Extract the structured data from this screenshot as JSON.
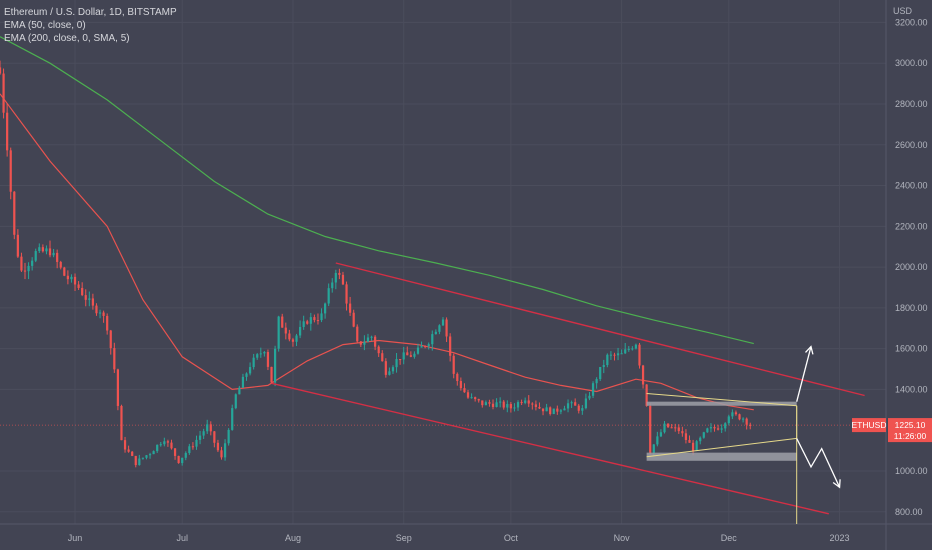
{
  "legend": {
    "title": "Ethereum / U.S. Dollar, 1D, BITSTAMP",
    "indicator_1": "EMA (50, close, 0)",
    "indicator_2": "EMA (200, close, 0, SMA, 5)"
  },
  "price_badge": {
    "symbol": "ETHUSD",
    "price": "1225.10",
    "countdown": "11:26:00"
  },
  "chart_data": {
    "type": "candlestick",
    "symbol": "ETHUSD",
    "currency_label": "USD",
    "ylim": [
      740,
      3310
    ],
    "y_ticks": [
      {
        "value": 3200,
        "label": "3200.00"
      },
      {
        "value": 3000,
        "label": "3000.00"
      },
      {
        "value": 2800,
        "label": "2800.00"
      },
      {
        "value": 2600,
        "label": "2600.00"
      },
      {
        "value": 2400,
        "label": "2400.00"
      },
      {
        "value": 2200,
        "label": "2200.00"
      },
      {
        "value": 2000,
        "label": "2000.00"
      },
      {
        "value": 1800,
        "label": "1800.00"
      },
      {
        "value": 1600,
        "label": "1600.00"
      },
      {
        "value": 1400,
        "label": "1400.00"
      },
      {
        "value": 1000,
        "label": "1000.00"
      },
      {
        "value": 800,
        "label": "800.00"
      }
    ],
    "x_range": [
      "2022-05-11",
      "2023-01-14"
    ],
    "x_ticks": [
      {
        "date": "2022-06-01",
        "label": "Jun"
      },
      {
        "date": "2022-07-01",
        "label": "Jul"
      },
      {
        "date": "2022-08-01",
        "label": "Aug"
      },
      {
        "date": "2022-09-01",
        "label": "Sep"
      },
      {
        "date": "2022-10-01",
        "label": "Oct"
      },
      {
        "date": "2022-11-01",
        "label": "Nov"
      },
      {
        "date": "2022-12-01",
        "label": "Dec"
      },
      {
        "date": "2023-01-01",
        "label": "2023"
      }
    ],
    "last_price": 1225.1,
    "colors": {
      "up": "#26a69a",
      "down": "#ef5350",
      "ema50": "#e8534f",
      "ema200": "#4caf50",
      "channel": "#d32f45",
      "triangle": "#e6d98a",
      "zone": "#9ea0a8",
      "arrow": "#ffffff",
      "badge": "#ef5350"
    },
    "candle_anchors": [
      [
        "2022-05-11",
        2950
      ],
      [
        "2022-05-13",
        2600
      ],
      [
        "2022-05-15",
        2150
      ],
      [
        "2022-05-17",
        1980
      ],
      [
        "2022-05-21",
        2070
      ],
      [
        "2022-05-25",
        2080
      ],
      [
        "2022-05-29",
        1960
      ],
      [
        "2022-06-02",
        1900
      ],
      [
        "2022-06-06",
        1800
      ],
      [
        "2022-06-08",
        1790
      ],
      [
        "2022-06-10",
        1710
      ],
      [
        "2022-06-12",
        1500
      ],
      [
        "2022-06-14",
        1140
      ],
      [
        "2022-06-18",
        1040
      ],
      [
        "2022-06-22",
        1090
      ],
      [
        "2022-06-26",
        1160
      ],
      [
        "2022-06-30",
        1050
      ],
      [
        "2022-07-04",
        1130
      ],
      [
        "2022-07-08",
        1220
      ],
      [
        "2022-07-12",
        1060
      ],
      [
        "2022-07-16",
        1370
      ],
      [
        "2022-07-20",
        1520
      ],
      [
        "2022-07-24",
        1600
      ],
      [
        "2022-07-26",
        1440
      ],
      [
        "2022-07-28",
        1740
      ],
      [
        "2022-08-01",
        1640
      ],
      [
        "2022-08-05",
        1740
      ],
      [
        "2022-08-09",
        1760
      ],
      [
        "2022-08-13",
        1990
      ],
      [
        "2022-08-15",
        1910
      ],
      [
        "2022-08-19",
        1620
      ],
      [
        "2022-08-23",
        1660
      ],
      [
        "2022-08-27",
        1490
      ],
      [
        "2022-08-31",
        1560
      ],
      [
        "2022-09-04",
        1570
      ],
      [
        "2022-09-08",
        1640
      ],
      [
        "2022-09-12",
        1760
      ],
      [
        "2022-09-15",
        1470
      ],
      [
        "2022-09-19",
        1360
      ],
      [
        "2022-09-23",
        1330
      ],
      [
        "2022-09-27",
        1330
      ],
      [
        "2022-10-01",
        1310
      ],
      [
        "2022-10-05",
        1360
      ],
      [
        "2022-10-09",
        1310
      ],
      [
        "2022-10-13",
        1290
      ],
      [
        "2022-10-17",
        1330
      ],
      [
        "2022-10-21",
        1300
      ],
      [
        "2022-10-25",
        1460
      ],
      [
        "2022-10-28",
        1560
      ],
      [
        "2022-11-01",
        1570
      ],
      [
        "2022-11-05",
        1630
      ],
      [
        "2022-11-08",
        1330
      ],
      [
        "2022-11-09",
        1100
      ],
      [
        "2022-11-13",
        1220
      ],
      [
        "2022-11-17",
        1200
      ],
      [
        "2022-11-21",
        1110
      ],
      [
        "2022-11-25",
        1200
      ],
      [
        "2022-11-29",
        1220
      ],
      [
        "2022-12-01",
        1280
      ],
      [
        "2022-12-05",
        1260
      ],
      [
        "2022-12-07",
        1225
      ]
    ],
    "ema50_points": [
      [
        "2022-05-11",
        2850
      ],
      [
        "2022-05-25",
        2520
      ],
      [
        "2022-06-10",
        2200
      ],
      [
        "2022-06-20",
        1840
      ],
      [
        "2022-07-01",
        1560
      ],
      [
        "2022-07-15",
        1400
      ],
      [
        "2022-07-25",
        1420
      ],
      [
        "2022-08-05",
        1540
      ],
      [
        "2022-08-15",
        1620
      ],
      [
        "2022-08-25",
        1640
      ],
      [
        "2022-09-05",
        1620
      ],
      [
        "2022-09-15",
        1580
      ],
      [
        "2022-09-25",
        1520
      ],
      [
        "2022-10-05",
        1460
      ],
      [
        "2022-10-15",
        1420
      ],
      [
        "2022-10-25",
        1390
      ],
      [
        "2022-11-05",
        1450
      ],
      [
        "2022-11-12",
        1430
      ],
      [
        "2022-11-22",
        1360
      ],
      [
        "2022-12-01",
        1320
      ],
      [
        "2022-12-08",
        1300
      ]
    ],
    "ema200_points": [
      [
        "2022-05-11",
        3130
      ],
      [
        "2022-05-25",
        3000
      ],
      [
        "2022-06-10",
        2820
      ],
      [
        "2022-06-25",
        2620
      ],
      [
        "2022-07-10",
        2420
      ],
      [
        "2022-07-25",
        2260
      ],
      [
        "2022-08-10",
        2150
      ],
      [
        "2022-08-25",
        2080
      ],
      [
        "2022-09-10",
        2020
      ],
      [
        "2022-09-25",
        1960
      ],
      [
        "2022-10-10",
        1890
      ],
      [
        "2022-10-25",
        1810
      ],
      [
        "2022-11-10",
        1740
      ],
      [
        "2022-11-25",
        1680
      ],
      [
        "2022-12-08",
        1625
      ]
    ],
    "channel_upper": [
      [
        "2022-08-13",
        2020
      ],
      [
        "2023-01-08",
        1370
      ]
    ],
    "channel_lower": [
      [
        "2022-07-26",
        1430
      ],
      [
        "2022-12-29",
        790
      ]
    ],
    "triangle": {
      "upper": [
        [
          "2022-11-08",
          1380
        ],
        [
          "2022-12-20",
          1320
        ]
      ],
      "lower": [
        [
          "2022-11-08",
          1070
        ],
        [
          "2022-12-20",
          1160
        ]
      ],
      "right_edge": [
        "2022-12-20",
        1320,
        1160
      ],
      "drop_line": [
        "2022-12-20",
        1320,
        740
      ]
    },
    "zones": [
      {
        "from": "2022-11-08",
        "to": "2022-12-20",
        "top": 1340,
        "bottom": 1320
      },
      {
        "from": "2022-11-08",
        "to": "2022-12-20",
        "top": 1090,
        "bottom": 1050
      }
    ],
    "arrows": [
      [
        [
          "2022-12-20",
          1340
        ],
        [
          "2022-12-24",
          1610
        ]
      ],
      [
        [
          "2022-12-20",
          1160
        ],
        [
          "2022-12-24",
          1020
        ],
        [
          "2022-12-27",
          1110
        ],
        [
          "2023-01-01",
          920
        ]
      ]
    ]
  }
}
